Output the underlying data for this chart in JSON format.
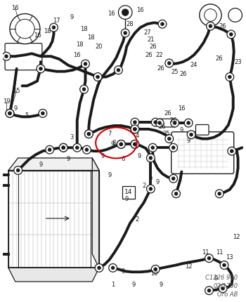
{
  "bg_color": "#ffffff",
  "diagram_color": "#1a1a1a",
  "red_circle_color": "#cc0000",
  "watermark_text": "C1226 900\n02/1790\nOro AB",
  "lw_hose": 2.8,
  "lw_thin": 1.0,
  "clamp_r": 0.013,
  "figsize": [
    3.5,
    4.3
  ],
  "dpi": 100
}
